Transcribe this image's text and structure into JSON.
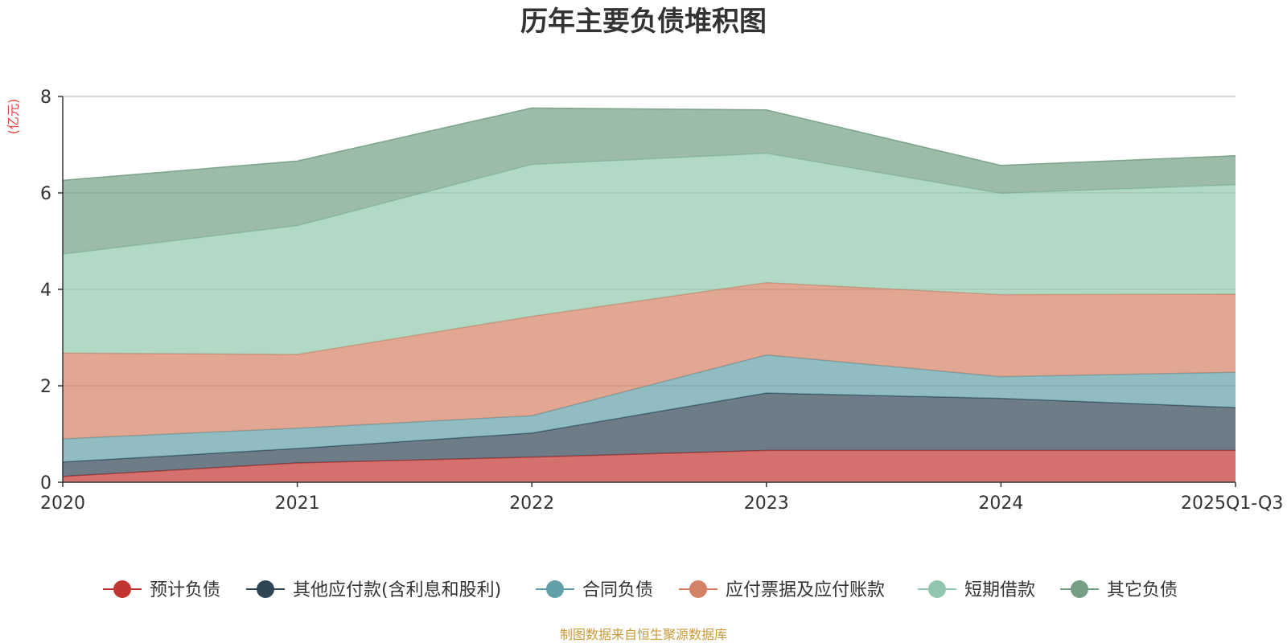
{
  "chart_data": {
    "type": "area",
    "stacked": true,
    "title": "历年主要负债堆积图",
    "ylabel": "(亿元)",
    "xlabel": "",
    "categories": [
      "2020",
      "2021",
      "2022",
      "2023",
      "2024",
      "2025Q1-Q3"
    ],
    "ylim": [
      0,
      8
    ],
    "yticks": [
      "0",
      "2",
      "4",
      "6",
      "8"
    ],
    "grid": true,
    "legend_position": "bottom",
    "series": [
      {
        "name": "预计负债",
        "color": "#c23531",
        "values": [
          0.12,
          0.4,
          0.52,
          0.66,
          0.66,
          0.66
        ]
      },
      {
        "name": "其他应付款(含利息和股利)",
        "color": "#2f4554",
        "values": [
          0.3,
          0.3,
          0.5,
          1.19,
          1.08,
          0.89
        ]
      },
      {
        "name": "合同负债",
        "color": "#61a0a8",
        "values": [
          0.48,
          0.42,
          0.36,
          0.79,
          0.45,
          0.73
        ]
      },
      {
        "name": "应付票据及应付账款",
        "color": "#d48265",
        "values": [
          1.78,
          1.53,
          2.06,
          1.5,
          1.7,
          1.62
        ]
      },
      {
        "name": "短期借款",
        "color": "#91c7ae",
        "values": [
          2.05,
          2.67,
          3.15,
          2.68,
          2.1,
          2.27
        ]
      },
      {
        "name": "其它负债",
        "color": "#749f83",
        "values": [
          1.53,
          1.34,
          1.17,
          0.9,
          0.58,
          0.6
        ]
      }
    ],
    "source": "制图数据来自恒生聚源数据库"
  }
}
